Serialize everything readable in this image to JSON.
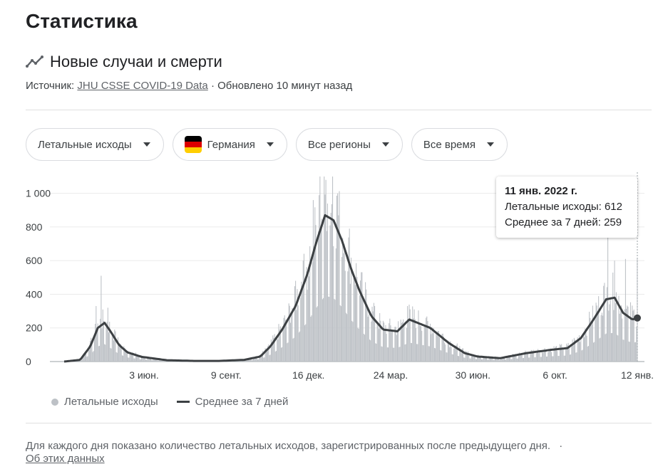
{
  "page": {
    "title": "Статистика"
  },
  "section": {
    "heading": "Новые случаи и смерти",
    "source_prefix": "Источник:",
    "source_link": "JHU CSSE COVID-19 Data",
    "updated": "· Обновлено 10 минут назад"
  },
  "filters": {
    "metric": "Летальные исходы",
    "country": "Германия",
    "region": "Все регионы",
    "period": "Все время"
  },
  "flag_colors": [
    "#000000",
    "#dd0000",
    "#ffce00"
  ],
  "tooltip": {
    "date": "11 янв. 2022 г.",
    "deaths": "Летальные исходы: 612",
    "avg": "Среднее за 7 дней: 259"
  },
  "legend": {
    "bars": "Летальные исходы",
    "line": "Среднее за 7 дней"
  },
  "footnote": "Для каждого дня показано количество летальных исходов, зарегистрированных после предыдущего дня.",
  "footnote_sep": "·",
  "about_link": "Об этих данных",
  "chart_data": {
    "type": "bar",
    "x_start": "2020-03-01",
    "x_end": "2022-01-11",
    "y_ticks": [
      "0",
      "200",
      "400",
      "600",
      "800",
      "1 000"
    ],
    "ylim": [
      0,
      1100
    ],
    "x_ticks": [
      "3 июн.",
      "9 сент.",
      "16 дек.",
      "24 мар.",
      "30 июн.",
      "6 окт.",
      "12 янв."
    ],
    "bar_color": "#bdc1c6",
    "line_color": "#3c4043",
    "avg_points": [
      [
        "2020-03-01",
        0
      ],
      [
        "2020-03-20",
        10
      ],
      [
        "2020-04-01",
        90
      ],
      [
        "2020-04-10",
        200
      ],
      [
        "2020-04-18",
        230
      ],
      [
        "2020-04-25",
        180
      ],
      [
        "2020-05-05",
        100
      ],
      [
        "2020-05-15",
        55
      ],
      [
        "2020-06-01",
        28
      ],
      [
        "2020-07-01",
        8
      ],
      [
        "2020-08-01",
        4
      ],
      [
        "2020-09-01",
        4
      ],
      [
        "2020-10-01",
        10
      ],
      [
        "2020-10-20",
        30
      ],
      [
        "2020-11-01",
        90
      ],
      [
        "2020-11-15",
        190
      ],
      [
        "2020-12-01",
        330
      ],
      [
        "2020-12-15",
        520
      ],
      [
        "2020-12-25",
        700
      ],
      [
        "2021-01-05",
        870
      ],
      [
        "2021-01-15",
        840
      ],
      [
        "2021-01-25",
        720
      ],
      [
        "2021-02-05",
        550
      ],
      [
        "2021-02-15",
        420
      ],
      [
        "2021-03-01",
        270
      ],
      [
        "2021-03-15",
        190
      ],
      [
        "2021-04-01",
        180
      ],
      [
        "2021-04-15",
        250
      ],
      [
        "2021-04-25",
        230
      ],
      [
        "2021-05-10",
        200
      ],
      [
        "2021-06-01",
        110
      ],
      [
        "2021-06-20",
        50
      ],
      [
        "2021-07-05",
        30
      ],
      [
        "2021-08-01",
        20
      ],
      [
        "2021-09-01",
        50
      ],
      [
        "2021-10-01",
        70
      ],
      [
        "2021-10-20",
        80
      ],
      [
        "2021-11-05",
        140
      ],
      [
        "2021-11-20",
        250
      ],
      [
        "2021-12-05",
        370
      ],
      [
        "2021-12-15",
        380
      ],
      [
        "2021-12-25",
        290
      ],
      [
        "2022-01-05",
        250
      ],
      [
        "2022-01-11",
        259
      ]
    ],
    "spikes": [
      [
        "2020-04-08",
        330
      ],
      [
        "2020-04-14",
        510
      ],
      [
        "2020-04-22",
        320
      ],
      [
        "2020-05-01",
        180
      ],
      [
        "2020-12-01",
        480
      ],
      [
        "2020-12-10",
        600
      ],
      [
        "2020-12-22",
        960
      ],
      [
        "2020-12-30",
        1100
      ],
      [
        "2021-01-06",
        1080
      ],
      [
        "2021-01-14",
        1100
      ],
      [
        "2021-01-20",
        1000
      ],
      [
        "2021-02-03",
        790
      ],
      [
        "2021-03-05",
        330
      ],
      [
        "2021-04-13",
        330
      ],
      [
        "2021-04-21",
        310
      ],
      [
        "2021-05-05",
        260
      ],
      [
        "2021-11-23",
        350
      ],
      [
        "2021-12-02",
        450
      ],
      [
        "2021-12-07",
        780
      ],
      [
        "2021-12-15",
        600
      ],
      [
        "2021-12-28",
        610
      ],
      [
        "2022-01-11",
        612
      ]
    ]
  }
}
